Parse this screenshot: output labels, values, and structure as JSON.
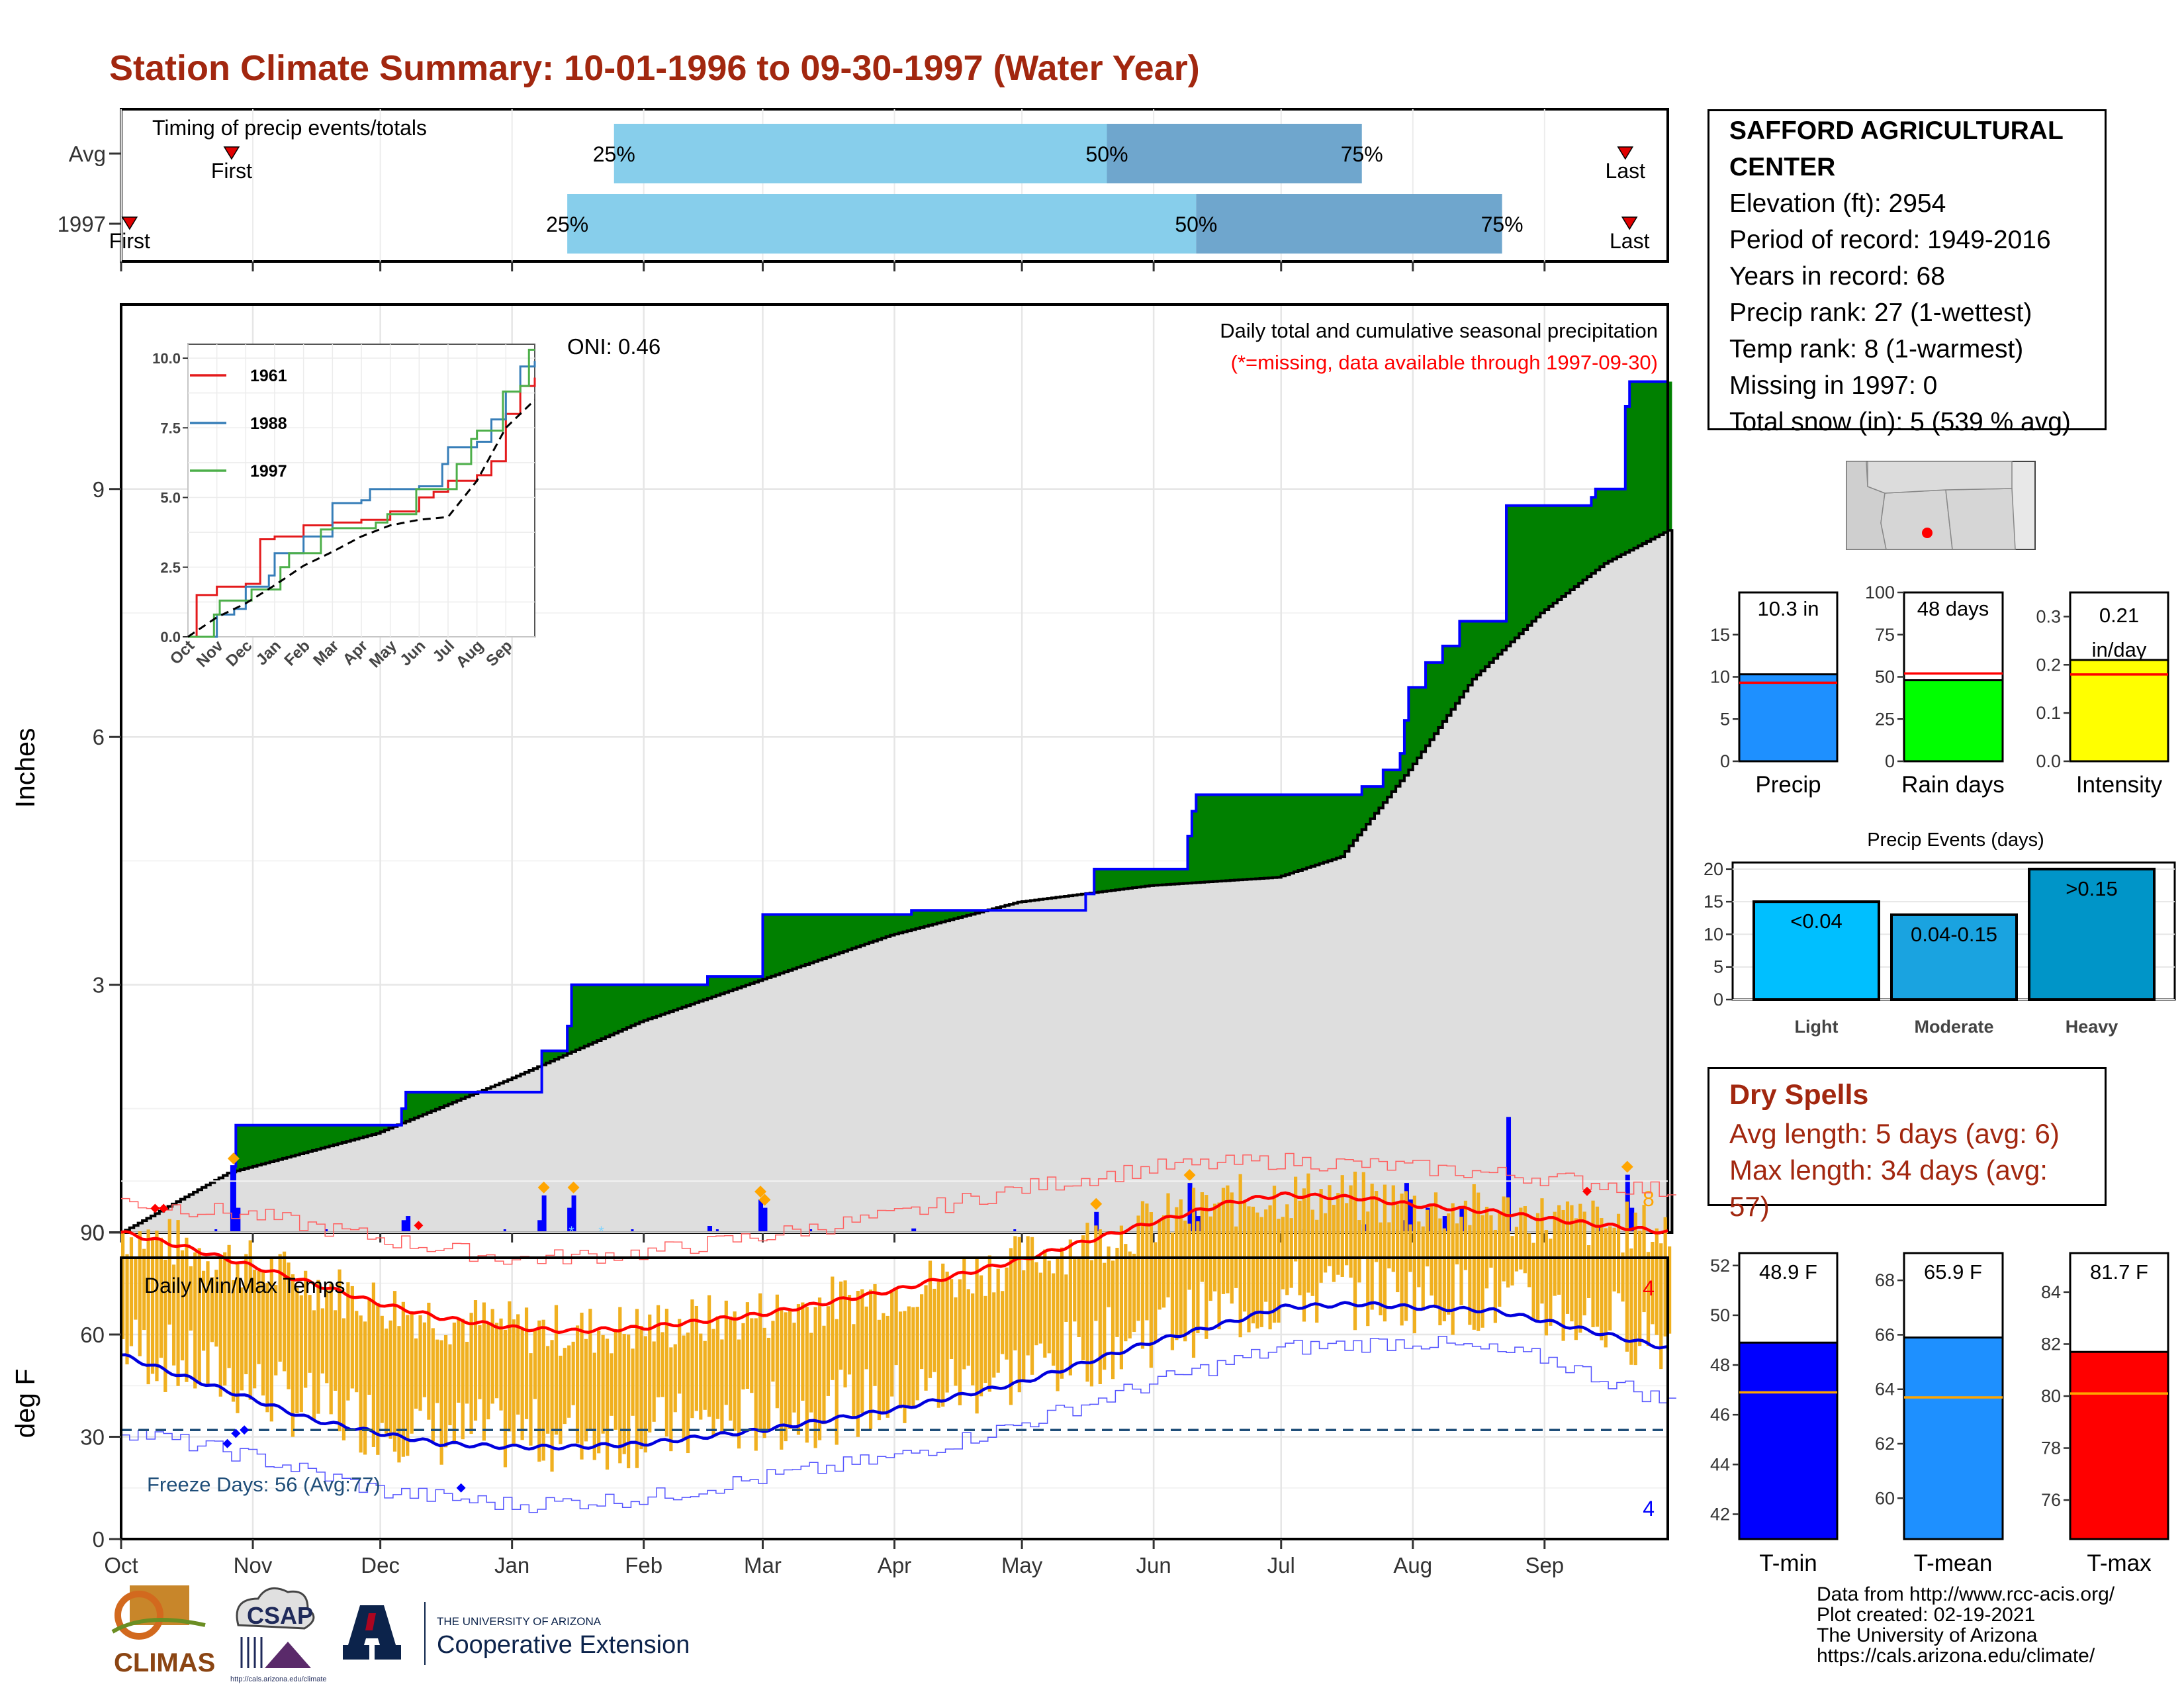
{
  "title": "Station Climate Summary: 10-01-1996 to 09-30-1997 (Water Year)",
  "timing": {
    "label": "Timing of precip events/totals",
    "rows": [
      {
        "name": "Avg",
        "first_label": "First",
        "last_label": "Last",
        "p25": "25%",
        "p50": "50%",
        "p75": "75%",
        "first_date": "1996-10-27",
        "last_date": "1997-09-20",
        "q25_date": "1997-01-25",
        "q50_date": "1997-05-21",
        "q75_date": "1997-07-20"
      },
      {
        "name": "1997",
        "first_label": "First",
        "last_label": "Last",
        "p25": "25%",
        "p50": "50%",
        "p75": "75%",
        "first_date": "1996-10-03",
        "last_date": "1997-09-21",
        "q25_date": "1997-01-14",
        "q50_date": "1997-06-11",
        "q75_date": "1997-08-22"
      }
    ]
  },
  "precip_panel": {
    "header": "Daily total and cumulative seasonal precipitation",
    "note": "(*=missing, data available through 1997-09-30)",
    "oni": "ONI: 0.46",
    "ylabel": "Inches",
    "yticks": [
      "0",
      "3",
      "6",
      "9"
    ],
    "days_label": "8"
  },
  "inset": {
    "yticks": [
      "0.0",
      "2.5",
      "5.0",
      "7.5",
      "10.0"
    ],
    "xticks": [
      "Oct",
      "Nov",
      "Dec",
      "Jan",
      "Feb",
      "Mar",
      "Apr",
      "May",
      "Jun",
      "Jul",
      "Aug",
      "Sep"
    ],
    "legend": [
      {
        "name": "1961",
        "color": "#e41a1c"
      },
      {
        "name": "1988",
        "color": "#377eb8"
      },
      {
        "name": "1997",
        "color": "#4daf4a"
      }
    ]
  },
  "temp_panel": {
    "header": "Daily Min/Max Temps",
    "ylabel": "deg F",
    "yticks": [
      "0",
      "30",
      "60",
      "90"
    ],
    "freeze_label": "Freeze Days: 56 (Avg:77)",
    "max_count": "4",
    "min_count": "4"
  },
  "months": [
    "Oct",
    "Nov",
    "Dec",
    "Jan",
    "Feb",
    "Mar",
    "Apr",
    "May",
    "Jun",
    "Jul",
    "Aug",
    "Sep"
  ],
  "station": {
    "name": "SAFFORD AGRICULTURAL CENTER",
    "lines": [
      "Elevation (ft): 2954",
      "Period of record: 1949-2016",
      "Years in record: 68",
      "Precip rank: 27 (1-wettest)",
      "Temp rank: 8 (1-warmest)",
      "Missing in 1997: 0",
      "Total snow (in): 5 (539 % avg)"
    ]
  },
  "dry_spells": {
    "title": "Dry Spells",
    "avg": "Avg length: 5 days (avg: 6)",
    "max": "Max length: 34 days (avg: 57)"
  },
  "precip_events": {
    "title": "Precip Events (days)",
    "categories": [
      "Light",
      "Moderate",
      "Heavy"
    ],
    "labels": [
      "<0.04",
      "0.04-0.15",
      ">0.15"
    ],
    "values": [
      15,
      13,
      20
    ],
    "yticks": [
      "0",
      "5",
      "10",
      "15",
      "20"
    ],
    "colors": [
      "#00bfff",
      "#1aa3e0",
      "#0095c8"
    ]
  },
  "colors": {
    "above_avg": "#008000",
    "below_avg": "#7a4a10",
    "precip_line": "#0000ff",
    "avg_fill": "#dedede",
    "temp_bar": "#f0b020",
    "max_avg": "#ff0000",
    "min_avg": "#0000dd",
    "title": "#a2270f"
  },
  "chart_data": [
    {
      "type": "line",
      "title": "Daily total and cumulative seasonal precipitation",
      "ylabel": "Inches",
      "ylim": [
        0,
        10.5
      ],
      "x_unit": "date",
      "series": [
        {
          "name": "cumulative_1997",
          "x": [
            "1996-10-01",
            "1996-10-26",
            "1996-10-27",
            "1996-10-28",
            "1996-12-01",
            "1996-12-06",
            "1996-12-07",
            "1997-01-07",
            "1997-01-08",
            "1997-01-14",
            "1997-01-15",
            "1997-02-15",
            "1997-02-16",
            "1997-02-28",
            "1997-03-01",
            "1997-04-05",
            "1997-04-06",
            "1997-05-16",
            "1997-05-18",
            "1997-05-19",
            "1997-06-08",
            "1997-06-09",
            "1997-06-10",
            "1997-06-11",
            "1997-07-15",
            "1997-07-20",
            "1997-07-25",
            "1997-07-29",
            "1997-07-30",
            "1997-07-31",
            "1997-08-04",
            "1997-08-08",
            "1997-08-12",
            "1997-08-22",
            "1997-08-23",
            "1997-09-12",
            "1997-09-13",
            "1997-09-19",
            "1997-09-20",
            "1997-09-21",
            "1997-09-30"
          ],
          "y": [
            0.0,
            0.0,
            0.8,
            1.3,
            1.3,
            1.5,
            1.7,
            1.7,
            2.2,
            2.5,
            3.0,
            3.0,
            3.1,
            3.1,
            3.85,
            3.9,
            3.9,
            4.1,
            4.4,
            4.4,
            4.4,
            4.8,
            5.1,
            5.3,
            5.3,
            5.4,
            5.6,
            5.8,
            6.2,
            6.6,
            6.9,
            7.1,
            7.4,
            7.4,
            8.8,
            8.9,
            9.0,
            9.0,
            10.0,
            10.3,
            10.3
          ]
        },
        {
          "name": "average",
          "x": [
            "1996-10-01",
            "1996-10-26",
            "1996-11-30",
            "1996-12-31",
            "1997-01-31",
            "1997-02-28",
            "1997-03-31",
            "1997-04-30",
            "1997-05-31",
            "1997-06-30",
            "1997-07-15",
            "1997-07-31",
            "1997-08-15",
            "1997-08-31",
            "1997-09-15",
            "1997-09-30"
          ],
          "y": [
            0.0,
            0.72,
            1.2,
            1.85,
            2.55,
            3.05,
            3.6,
            4.0,
            4.2,
            4.3,
            4.55,
            5.6,
            6.7,
            7.5,
            8.1,
            8.5
          ]
        }
      ],
      "daily_bars": [
        {
          "date": "1996-10-27",
          "value": 0.8
        },
        {
          "date": "1996-10-28",
          "value": 0.3
        },
        {
          "date": "1996-12-06",
          "value": 0.15
        },
        {
          "date": "1996-12-07",
          "value": 0.2
        },
        {
          "date": "1997-01-07",
          "value": 0.15
        },
        {
          "date": "1997-01-08",
          "value": 0.45
        },
        {
          "date": "1997-01-14",
          "value": 0.3
        },
        {
          "date": "1997-01-15",
          "value": 0.45
        },
        {
          "date": "1997-02-16",
          "value": 0.08
        },
        {
          "date": "1997-02-28",
          "value": 0.4
        },
        {
          "date": "1997-03-01",
          "value": 0.3
        },
        {
          "date": "1997-04-05",
          "value": 0.05
        },
        {
          "date": "1997-05-18",
          "value": 0.25
        },
        {
          "date": "1997-06-09",
          "value": 0.6
        },
        {
          "date": "1997-06-10",
          "value": 0.3
        },
        {
          "date": "1997-06-11",
          "value": 0.2
        },
        {
          "date": "1997-07-20",
          "value": 0.1
        },
        {
          "date": "1997-07-29",
          "value": 0.15
        },
        {
          "date": "1997-07-30",
          "value": 0.6
        },
        {
          "date": "1997-07-31",
          "value": 0.4
        },
        {
          "date": "1997-08-04",
          "value": 0.3
        },
        {
          "date": "1997-08-08",
          "value": 0.2
        },
        {
          "date": "1997-08-12",
          "value": 0.3
        },
        {
          "date": "1997-08-23",
          "value": 1.4
        },
        {
          "date": "1997-09-13",
          "value": 0.08
        },
        {
          "date": "1997-09-20",
          "value": 0.7
        },
        {
          "date": "1997-09-21",
          "value": 0.3
        }
      ]
    },
    {
      "type": "line",
      "title": "",
      "ylim": [
        0,
        10.5
      ],
      "x_unit": "month",
      "series": [
        {
          "name": "1961",
          "x": [
            0,
            0.3,
            1,
            2,
            2.5,
            3,
            4,
            5,
            6,
            7,
            8,
            8.5,
            9,
            10,
            10.5,
            11,
            11.5,
            12
          ],
          "y": [
            0,
            1.5,
            1.8,
            1.9,
            3.5,
            3.6,
            4.0,
            4.1,
            4.2,
            4.5,
            5.0,
            5.2,
            5.6,
            5.8,
            6.3,
            8.0,
            9.0,
            9.3
          ]
        },
        {
          "name": "1988",
          "x": [
            0,
            1,
            1.6,
            2,
            2.8,
            3,
            4,
            5,
            6,
            6.3,
            7,
            8,
            8.8,
            9,
            10,
            10.5,
            11,
            11.5,
            12
          ],
          "y": [
            0,
            0.8,
            1.0,
            1.8,
            2.2,
            3.0,
            3.6,
            4.8,
            4.9,
            5.3,
            5.3,
            5.4,
            6.2,
            6.8,
            7.0,
            7.8,
            8.8,
            9.7,
            9.9
          ]
        },
        {
          "name": "1997",
          "x": [
            0,
            0.9,
            1.1,
            2.2,
            3.2,
            3.5,
            4.6,
            5.0,
            6.5,
            6.9,
            7.9,
            8.3,
            9.3,
            9.8,
            10.0,
            10.9,
            11.5,
            11.8,
            12
          ],
          "y": [
            0,
            0.8,
            1.3,
            1.7,
            2.5,
            3.0,
            3.85,
            3.9,
            4.1,
            4.4,
            5.3,
            5.3,
            6.2,
            7.1,
            7.4,
            8.8,
            9.0,
            10.3,
            10.3
          ]
        },
        {
          "name": "average",
          "x": [
            0,
            1,
            2,
            3,
            4,
            5,
            6,
            7,
            8,
            9,
            10,
            11,
            12
          ],
          "y": [
            0,
            0.7,
            1.2,
            1.85,
            2.55,
            3.05,
            3.6,
            4.0,
            4.2,
            4.3,
            5.6,
            7.5,
            8.5
          ]
        }
      ]
    },
    {
      "type": "line",
      "title": "Daily Min/Max Temps",
      "ylabel": "deg F",
      "ylim": [
        0,
        110
      ],
      "x_unit": "date",
      "series": [
        {
          "name": "avg_max",
          "x": [
            "1996-10-01",
            "1996-10-15",
            "1996-11-01",
            "1996-11-15",
            "1996-12-01",
            "1996-12-15",
            "1997-01-01",
            "1997-01-15",
            "1997-02-01",
            "1997-03-01",
            "1997-04-01",
            "1997-05-01",
            "1997-06-01",
            "1997-06-20",
            "1997-07-01",
            "1997-07-20",
            "1997-08-01",
            "1997-08-20",
            "1997-09-01",
            "1997-09-30"
          ],
          "y": [
            90,
            86,
            80,
            75,
            69,
            65,
            62,
            61,
            62,
            66,
            73,
            82,
            93,
            99,
            101,
            100,
            98,
            96,
            94,
            90
          ]
        },
        {
          "name": "avg_min",
          "x": [
            "1996-10-01",
            "1996-10-15",
            "1996-11-01",
            "1996-11-15",
            "1996-12-01",
            "1996-12-15",
            "1997-01-01",
            "1997-01-15",
            "1997-02-01",
            "1997-03-01",
            "1997-04-01",
            "1997-05-01",
            "1997-06-01",
            "1997-06-20",
            "1997-07-01",
            "1997-07-20",
            "1997-08-01",
            "1997-08-20",
            "1997-09-01",
            "1997-09-30"
          ],
          "y": [
            54,
            48,
            41,
            35,
            31,
            28,
            27,
            27,
            28,
            32,
            38,
            46,
            58,
            64,
            68,
            69,
            68,
            67,
            64,
            56
          ]
        },
        {
          "name": "record_max",
          "x": [
            "1996-10-01",
            "1996-11-01",
            "1996-12-01",
            "1997-01-01",
            "1997-02-01",
            "1997-03-01",
            "1997-04-01",
            "1997-05-01",
            "1997-06-01",
            "1997-07-01",
            "1997-08-01",
            "1997-09-01",
            "1997-09-30"
          ],
          "y": [
            99,
            95,
            88,
            82,
            84,
            89,
            95,
            103,
            109,
            111,
            109,
            106,
            102
          ]
        },
        {
          "name": "record_min",
          "x": [
            "1996-10-01",
            "1996-11-01",
            "1996-12-01",
            "1997-01-01",
            "1997-02-01",
            "1997-03-01",
            "1997-04-01",
            "1997-05-01",
            "1997-06-01",
            "1997-07-01",
            "1997-08-01",
            "1997-09-01",
            "1997-09-30"
          ],
          "y": [
            32,
            24,
            14,
            10,
            12,
            18,
            24,
            34,
            46,
            56,
            58,
            53,
            40
          ]
        }
      ],
      "freeze_threshold": 32
    },
    {
      "type": "bar",
      "categories": [
        "Precip",
        "Rain days",
        "Intensity"
      ],
      "values_text": [
        "10.3 in",
        "48 days",
        "0.21 in/day"
      ],
      "values": [
        10.3,
        48,
        0.21
      ],
      "averages": [
        9.3,
        52,
        0.18
      ],
      "yticks": [
        [
          "0",
          "5",
          "10",
          "15"
        ],
        [
          "0",
          "25",
          "50",
          "75",
          "100"
        ],
        [
          "0.0",
          "0.1",
          "0.2",
          "0.3"
        ]
      ],
      "ylims": [
        [
          0,
          20
        ],
        [
          0,
          100
        ],
        [
          0,
          0.35
        ]
      ],
      "colors": [
        "#1e90ff",
        "#00ff00",
        "#ffff00"
      ]
    },
    {
      "type": "bar",
      "title": "Precip Events (days)",
      "categories": [
        "Light",
        "Moderate",
        "Heavy"
      ],
      "values": [
        15,
        13,
        20
      ],
      "ylim": [
        0,
        21
      ]
    },
    {
      "type": "bar",
      "categories": [
        "T-min",
        "T-mean",
        "T-max"
      ],
      "values_text": [
        "48.9 F",
        "65.9 F",
        "81.7 F"
      ],
      "values": [
        48.9,
        65.9,
        81.7
      ],
      "averages": [
        46.9,
        63.7,
        80.1
      ],
      "yticks": [
        [
          "42",
          "44",
          "46",
          "48",
          "50",
          "52"
        ],
        [
          "60",
          "62",
          "64",
          "66",
          "68"
        ],
        [
          "76",
          "78",
          "80",
          "82",
          "84"
        ]
      ],
      "ylims": [
        [
          41,
          52.5
        ],
        [
          58.5,
          69
        ],
        [
          74.5,
          85.5
        ]
      ],
      "colors": [
        "#0000ff",
        "#1e90ff",
        "#ff0000"
      ]
    }
  ],
  "credits": [
    "Data from http://www.rcc-acis.org/",
    "Plot created: 02-19-2021",
    "The University of Arizona",
    "https://cals.arizona.edu/climate/"
  ],
  "logos": {
    "climas": "CLIMAS",
    "csap": "CSAP",
    "csap_url": "http://cals.arizona.edu/climate",
    "ua_small": "THE UNIVERSITY OF ARIZONA",
    "ua_big": "Cooperative Extension"
  }
}
